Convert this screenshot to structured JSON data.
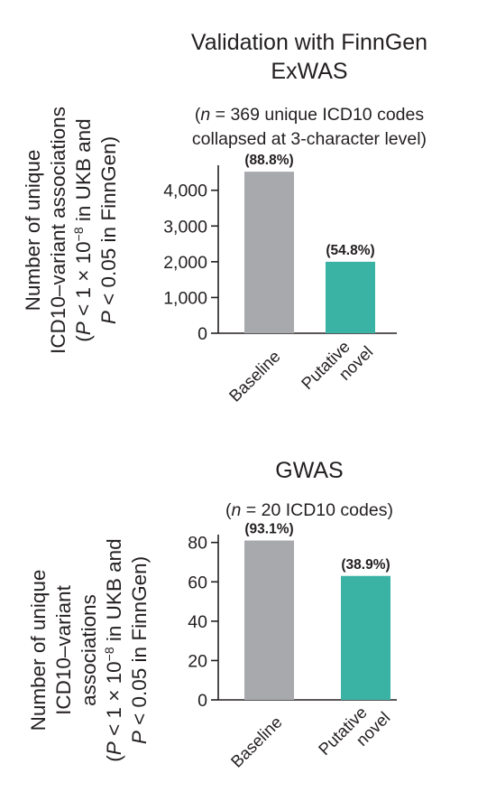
{
  "chart_data": [
    {
      "type": "bar",
      "title_lines": [
        "Validation with FinnGen",
        "ExWAS"
      ],
      "subtitle_lines": [
        {
          "prefix": "(",
          "italic": "n",
          "rest": " = 369 unique ICD10 codes"
        },
        {
          "prefix": "collapsed at 3-character level)",
          "italic": "",
          "rest": ""
        }
      ],
      "ylabel_lines": [
        {
          "a": "Number of unique"
        },
        {
          "a": "ICD10–variant associations"
        },
        {
          "a": "(",
          "i1": "P",
          "b": " < 1 × 10",
          "sup": "−8",
          "c": " in UKB and"
        },
        {
          "a": "",
          "i1": "P",
          "b": " < 0.05 in FinnGen)"
        }
      ],
      "categories": [
        [
          "Baseline"
        ],
        [
          "Putative",
          "novel"
        ]
      ],
      "values": [
        4520,
        2000
      ],
      "data_labels": [
        "(88.8%)",
        "(54.8%)"
      ],
      "colors": [
        "#a7a9ac",
        "#3bb3a4"
      ],
      "ylim": [
        0,
        4700
      ],
      "yticks": [
        0,
        1000,
        2000,
        3000,
        4000
      ],
      "ytick_labels": [
        "0",
        "1,000",
        "2,000",
        "3,000",
        "4,000"
      ]
    },
    {
      "type": "bar",
      "title_lines": [
        "GWAS"
      ],
      "subtitle_lines": [
        {
          "prefix": "(",
          "italic": "n",
          "rest": " = 20 ICD10 codes)"
        }
      ],
      "ylabel_lines": [
        {
          "a": "Number of unique"
        },
        {
          "a": "ICD10–variant"
        },
        {
          "a": "associations"
        },
        {
          "a": "(",
          "i1": "P",
          "b": " < 1 × 10",
          "sup": "−8",
          "c": " in UKB and"
        },
        {
          "a": "",
          "i1": "P",
          "b": " < 0.05 in FinnGen)"
        }
      ],
      "categories": [
        [
          "Baseline"
        ],
        [
          "Putative",
          "novel"
        ]
      ],
      "values": [
        81,
        63
      ],
      "data_labels": [
        "(93.1%)",
        "(38.9%)"
      ],
      "colors": [
        "#a7a9ac",
        "#3bb3a4"
      ],
      "ylim": [
        0,
        84
      ],
      "yticks": [
        0,
        20,
        40,
        60,
        80
      ],
      "ytick_labels": [
        "0",
        "20",
        "40",
        "60",
        "80"
      ]
    }
  ]
}
